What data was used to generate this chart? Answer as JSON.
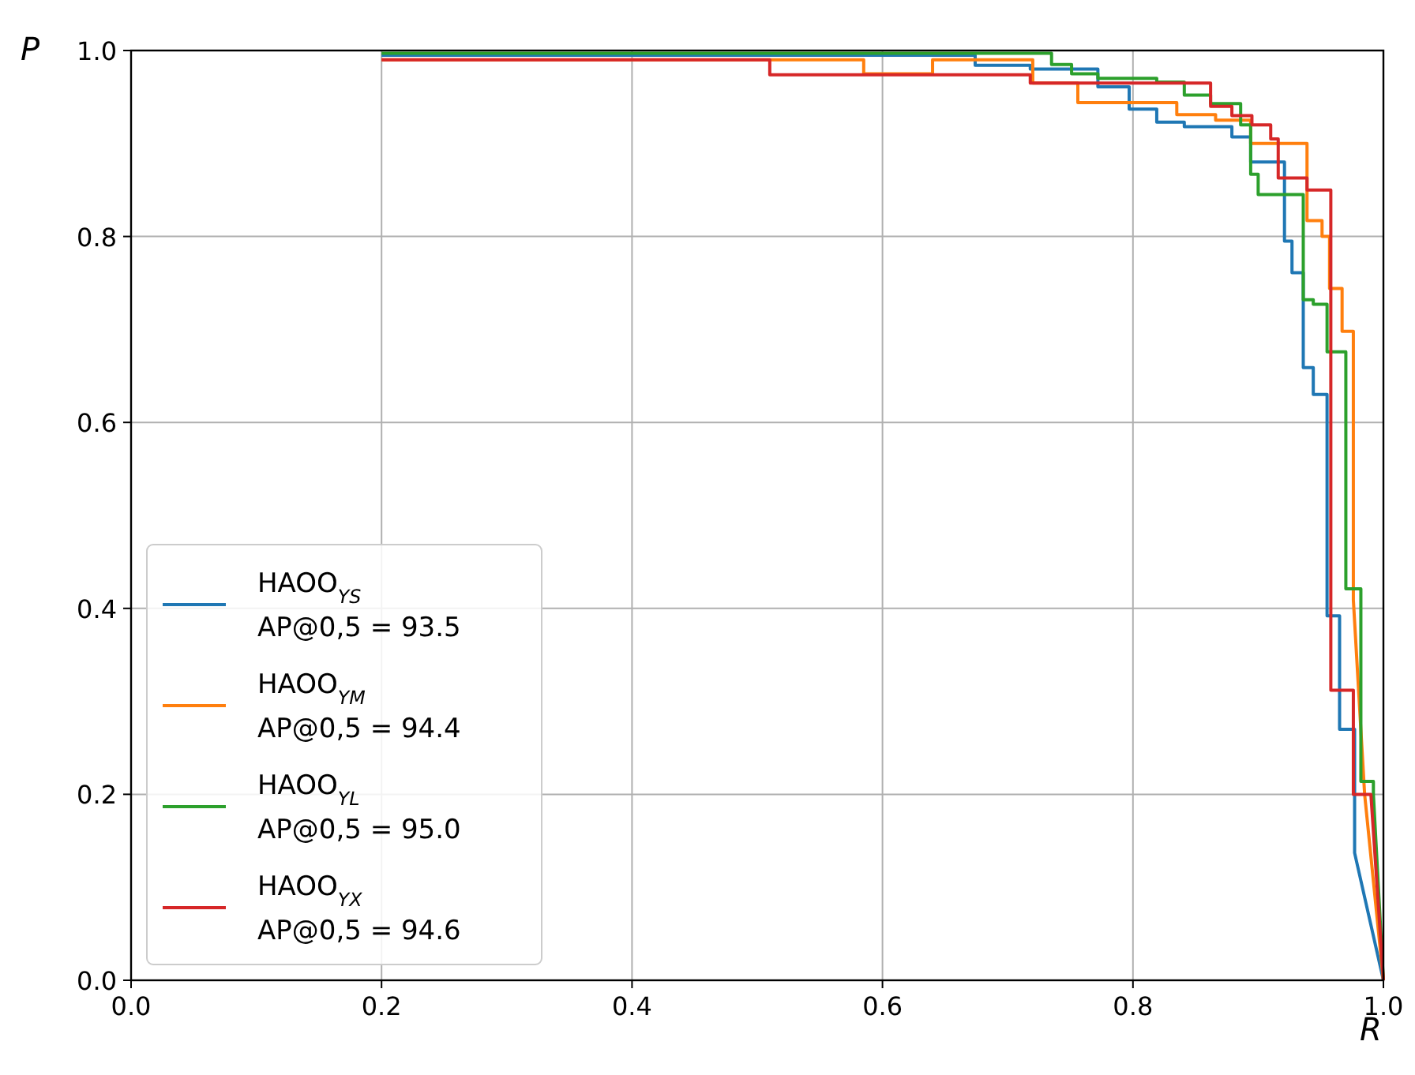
{
  "chart_data": {
    "type": "line",
    "xlabel": "R",
    "ylabel": "P",
    "xlim": [
      0,
      1
    ],
    "ylim": [
      0,
      1
    ],
    "xticks": [
      {
        "value": 0,
        "label": "0.0"
      },
      {
        "value": 0.2,
        "label": "0.2"
      },
      {
        "value": 0.4,
        "label": "0.4"
      },
      {
        "value": 0.6,
        "label": "0.6"
      },
      {
        "value": 0.8,
        "label": "0.8"
      },
      {
        "value": 1,
        "label": "1.0"
      }
    ],
    "yticks": [
      {
        "value": 0,
        "label": "0.0"
      },
      {
        "value": 0.2,
        "label": "0.2"
      },
      {
        "value": 0.4,
        "label": "0.4"
      },
      {
        "value": 0.6,
        "label": "0.6"
      },
      {
        "value": 0.8,
        "label": "0.8"
      },
      {
        "value": 1,
        "label": "1.0"
      }
    ],
    "grid": true,
    "legend": "bottom left",
    "marker": "none",
    "line_style": "solid",
    "series": [
      {
        "name": "HAOO$_{YS}$\nAP@0,5 = 93.5",
        "color": "#1f77b4",
        "x": [
          0.2,
          0.674,
          0.674,
          0.718,
          0.718,
          0.772,
          0.772,
          0.797,
          0.797,
          0.819,
          0.819,
          0.841,
          0.841,
          0.879,
          0.879,
          0.894,
          0.894,
          0.921,
          0.921,
          0.927,
          0.927,
          0.936,
          0.936,
          0.944,
          0.944,
          0.955,
          0.955,
          0.965,
          0.965,
          0.977,
          0.977,
          1
        ],
        "values": [
          0.995,
          0.995,
          0.984,
          0.984,
          0.98,
          0.98,
          0.961,
          0.961,
          0.937,
          0.937,
          0.923,
          0.923,
          0.918,
          0.918,
          0.907,
          0.907,
          0.88,
          0.88,
          0.795,
          0.795,
          0.761,
          0.761,
          0.659,
          0.659,
          0.63,
          0.63,
          0.392,
          0.392,
          0.27,
          0.27,
          0.137,
          0
        ]
      },
      {
        "name": "HAOO$_{YM}$\nAP@0,5 = 94.4",
        "color": "#ff7f0e",
        "x": [
          0.2,
          0.585,
          0.585,
          0.64,
          0.64,
          0.72,
          0.72,
          0.756,
          0.756,
          0.835,
          0.835,
          0.866,
          0.866,
          0.894,
          0.894,
          0.939,
          0.939,
          0.951,
          0.951,
          0.957,
          0.957,
          0.967,
          0.967,
          0.976,
          0.976,
          0.985,
          1
        ],
        "values": [
          0.99,
          0.99,
          0.975,
          0.975,
          0.99,
          0.99,
          0.965,
          0.965,
          0.944,
          0.944,
          0.931,
          0.931,
          0.925,
          0.925,
          0.9,
          0.9,
          0.817,
          0.817,
          0.8,
          0.8,
          0.744,
          0.744,
          0.698,
          0.698,
          0.409,
          0.2,
          0
        ]
      },
      {
        "name": "HAOO$_{YL}$\nAP@0,5 = 95.0",
        "color": "#2ca02c",
        "x": [
          0.2,
          0.735,
          0.735,
          0.751,
          0.751,
          0.772,
          0.772,
          0.819,
          0.819,
          0.841,
          0.841,
          0.862,
          0.862,
          0.886,
          0.886,
          0.894,
          0.894,
          0.9,
          0.9,
          0.936,
          0.936,
          0.944,
          0.944,
          0.955,
          0.955,
          0.97,
          0.97,
          0.982,
          0.982,
          0.992,
          0.992,
          1
        ],
        "values": [
          0.997,
          0.997,
          0.985,
          0.985,
          0.975,
          0.975,
          0.97,
          0.97,
          0.966,
          0.966,
          0.952,
          0.952,
          0.943,
          0.943,
          0.92,
          0.92,
          0.867,
          0.867,
          0.845,
          0.845,
          0.732,
          0.732,
          0.727,
          0.727,
          0.676,
          0.676,
          0.421,
          0.421,
          0.214,
          0.214,
          0.2,
          0
        ]
      },
      {
        "name": "HAOO$_{YX}$\nAP@0,5 = 94.6",
        "color": "#d62728",
        "x": [
          0.2,
          0.51,
          0.51,
          0.718,
          0.718,
          0.862,
          0.862,
          0.879,
          0.879,
          0.895,
          0.895,
          0.91,
          0.91,
          0.916,
          0.916,
          0.939,
          0.939,
          0.958,
          0.958,
          0.976,
          0.976,
          0.99,
          1
        ],
        "values": [
          0.99,
          0.99,
          0.974,
          0.974,
          0.965,
          0.965,
          0.94,
          0.94,
          0.93,
          0.93,
          0.92,
          0.92,
          0.905,
          0.905,
          0.863,
          0.863,
          0.85,
          0.85,
          0.312,
          0.312,
          0.2,
          0.2,
          0
        ]
      }
    ]
  }
}
